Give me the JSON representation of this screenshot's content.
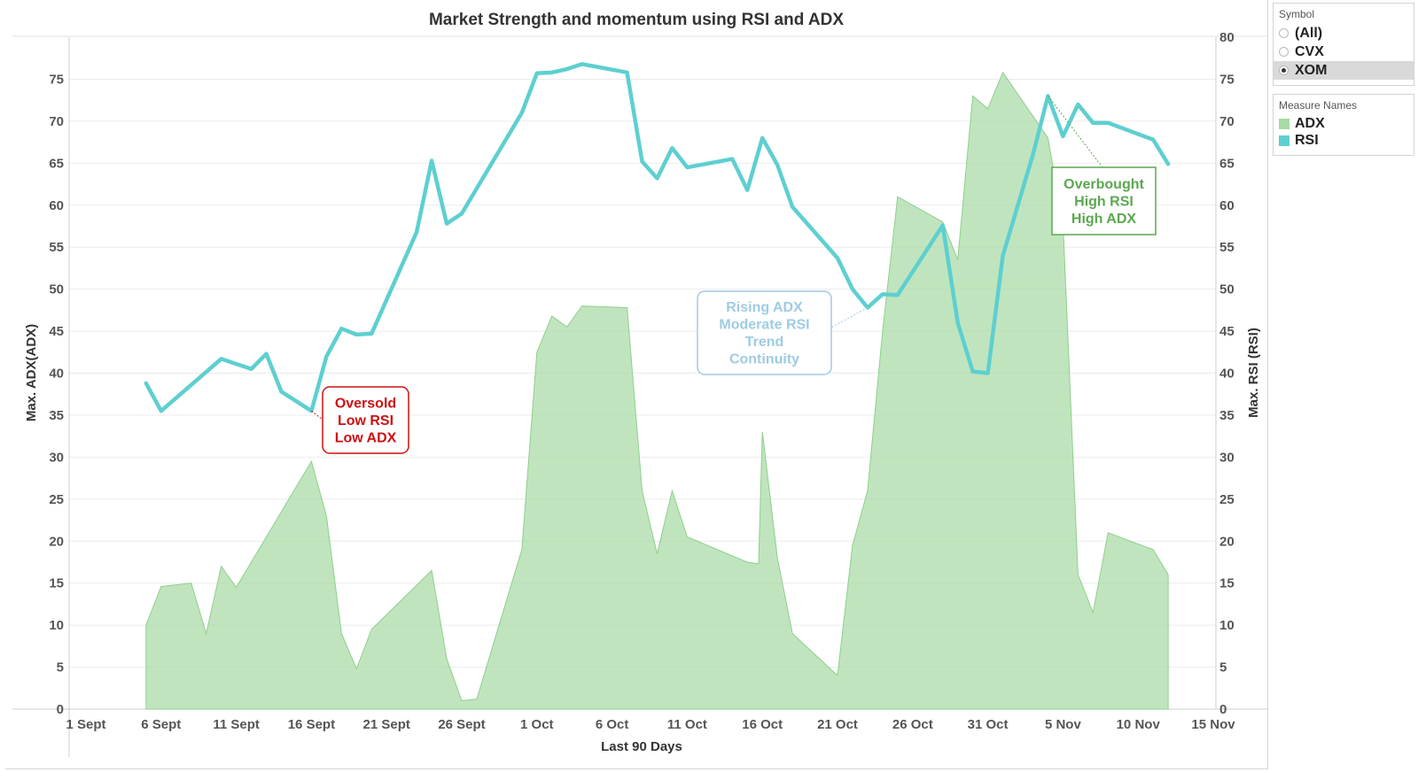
{
  "colors": {
    "adx_fill": "#a8dba5",
    "adx_line": "#8fce8c",
    "rsi_line": "#5ecfd0",
    "grid": "#ebebeb",
    "axis": "#cfcfcf",
    "oversold": "#cc1111",
    "rising": "#9ecbe4",
    "overbought": "#5aa84f"
  },
  "filters": {
    "title": "Symbol",
    "options": [
      {
        "label": "(All)",
        "selected": false
      },
      {
        "label": "CVX",
        "selected": false
      },
      {
        "label": "XOM",
        "selected": true
      }
    ]
  },
  "legend": {
    "title": "Measure Names",
    "items": [
      {
        "label": "ADX",
        "color": "#a8dba5"
      },
      {
        "label": "RSI",
        "color": "#5ecfd0"
      }
    ]
  },
  "chart_data": {
    "type": "area+line",
    "title": "Market Strength and momentum using RSI and ADX",
    "xlabel": "Last 90 Days",
    "ylabel_left": "Max. ADX(ADX)",
    "ylabel_right": "Max. RSI (RSI)",
    "x_domain": [
      "2023-09-01",
      "2023-11-15"
    ],
    "x_ticks": [
      {
        "date": "2023-09-01",
        "label": "1 Sept"
      },
      {
        "date": "2023-09-06",
        "label": "6 Sept"
      },
      {
        "date": "2023-09-11",
        "label": "11 Sept"
      },
      {
        "date": "2023-09-16",
        "label": "16 Sept"
      },
      {
        "date": "2023-09-21",
        "label": "21 Sept"
      },
      {
        "date": "2023-09-26",
        "label": "26 Sept"
      },
      {
        "date": "2023-10-01",
        "label": "1 Oct"
      },
      {
        "date": "2023-10-06",
        "label": "6 Oct"
      },
      {
        "date": "2023-10-11",
        "label": "11 Oct"
      },
      {
        "date": "2023-10-16",
        "label": "16 Oct"
      },
      {
        "date": "2023-10-21",
        "label": "21 Oct"
      },
      {
        "date": "2023-10-26",
        "label": "26 Oct"
      },
      {
        "date": "2023-10-31",
        "label": "31 Oct"
      },
      {
        "date": "2023-11-05",
        "label": "5 Nov"
      },
      {
        "date": "2023-11-10",
        "label": "10 Nov"
      },
      {
        "date": "2023-11-15",
        "label": "15 Nov"
      }
    ],
    "ylim_left": [
      0,
      80
    ],
    "yticks_left": [
      0,
      5,
      10,
      15,
      20,
      25,
      30,
      35,
      40,
      45,
      50,
      55,
      60,
      65,
      70,
      75
    ],
    "ylim_right": [
      0,
      80
    ],
    "yticks_right": [
      0,
      5,
      10,
      15,
      20,
      25,
      30,
      35,
      40,
      45,
      50,
      55,
      60,
      65,
      70,
      75,
      80
    ],
    "grid": true,
    "series": [
      {
        "name": "ADX",
        "axis": "left",
        "style": "area",
        "points": [
          [
            "2023-09-05",
            10.0
          ],
          [
            "2023-09-06",
            14.6
          ],
          [
            "2023-09-08",
            15.0
          ],
          [
            "2023-09-09",
            9.0
          ],
          [
            "2023-09-10",
            17.0
          ],
          [
            "2023-09-11",
            14.5
          ],
          [
            "2023-09-16",
            29.5
          ],
          [
            "2023-09-17",
            23.0
          ],
          [
            "2023-09-18",
            9.0
          ],
          [
            "2023-09-19",
            4.8
          ],
          [
            "2023-09-20",
            9.5
          ],
          [
            "2023-09-24",
            16.5
          ],
          [
            "2023-09-25",
            6.0
          ],
          [
            "2023-09-26",
            1.0
          ],
          [
            "2023-09-27",
            1.2
          ],
          [
            "2023-09-30",
            19.0
          ],
          [
            "2023-10-01",
            42.5
          ],
          [
            "2023-10-02",
            46.8
          ],
          [
            "2023-10-03",
            45.5
          ],
          [
            "2023-10-04",
            48.0
          ],
          [
            "2023-10-07",
            47.8
          ],
          [
            "2023-10-08",
            26.0
          ],
          [
            "2023-10-09",
            18.5
          ],
          [
            "2023-10-10",
            26.0
          ],
          [
            "2023-10-11",
            20.5
          ],
          [
            "2023-10-15",
            17.5
          ],
          [
            "2023-10-15T18:00",
            17.3
          ],
          [
            "2023-10-16",
            33.0
          ],
          [
            "2023-10-17",
            18.0
          ],
          [
            "2023-10-18",
            9.0
          ],
          [
            "2023-10-21",
            4.0
          ],
          [
            "2023-10-22",
            19.5
          ],
          [
            "2023-10-23",
            26.0
          ],
          [
            "2023-10-24",
            45.0
          ],
          [
            "2023-10-25",
            61.0
          ],
          [
            "2023-10-28",
            58.0
          ],
          [
            "2023-10-29",
            53.5
          ],
          [
            "2023-10-30",
            73.0
          ],
          [
            "2023-10-31",
            71.5
          ],
          [
            "2023-11-01",
            75.8
          ],
          [
            "2023-11-04",
            68.0
          ],
          [
            "2023-11-05",
            58.0
          ],
          [
            "2023-11-06",
            16.0
          ],
          [
            "2023-11-07",
            11.5
          ],
          [
            "2023-11-08",
            21.0
          ],
          [
            "2023-11-11",
            19.0
          ],
          [
            "2023-11-12",
            16.0
          ]
        ]
      },
      {
        "name": "RSI",
        "axis": "right",
        "style": "line",
        "points": [
          [
            "2023-09-05",
            38.8
          ],
          [
            "2023-09-06",
            35.5
          ],
          [
            "2023-09-10",
            41.7
          ],
          [
            "2023-09-12",
            40.5
          ],
          [
            "2023-09-13",
            42.3
          ],
          [
            "2023-09-14",
            37.8
          ],
          [
            "2023-09-16",
            35.5
          ],
          [
            "2023-09-17",
            42.0
          ],
          [
            "2023-09-18",
            45.3
          ],
          [
            "2023-09-19",
            44.6
          ],
          [
            "2023-09-20",
            44.7
          ],
          [
            "2023-09-23",
            56.8
          ],
          [
            "2023-09-24",
            65.3
          ],
          [
            "2023-09-25",
            57.8
          ],
          [
            "2023-09-26",
            59.0
          ],
          [
            "2023-09-30",
            71.0
          ],
          [
            "2023-10-01",
            75.7
          ],
          [
            "2023-10-02",
            75.8
          ],
          [
            "2023-10-03",
            76.2
          ],
          [
            "2023-10-04",
            76.8
          ],
          [
            "2023-10-07",
            75.8
          ],
          [
            "2023-10-08",
            65.2
          ],
          [
            "2023-10-09",
            63.2
          ],
          [
            "2023-10-10",
            66.8
          ],
          [
            "2023-10-11",
            64.5
          ],
          [
            "2023-10-14",
            65.5
          ],
          [
            "2023-10-15",
            61.8
          ],
          [
            "2023-10-16",
            68.0
          ],
          [
            "2023-10-17",
            64.8
          ],
          [
            "2023-10-18",
            59.8
          ],
          [
            "2023-10-21",
            53.7
          ],
          [
            "2023-10-22",
            50.0
          ],
          [
            "2023-10-23",
            47.8
          ],
          [
            "2023-10-24",
            49.4
          ],
          [
            "2023-10-25",
            49.3
          ],
          [
            "2023-10-28",
            57.6
          ],
          [
            "2023-10-29",
            46.0
          ],
          [
            "2023-10-30",
            40.2
          ],
          [
            "2023-10-31",
            40.0
          ],
          [
            "2023-11-01",
            54.0
          ],
          [
            "2023-11-03",
            66.0
          ],
          [
            "2023-11-04",
            73.0
          ],
          [
            "2023-11-05",
            68.2
          ],
          [
            "2023-11-06",
            72.0
          ],
          [
            "2023-11-07",
            69.8
          ],
          [
            "2023-11-08",
            69.8
          ],
          [
            "2023-11-11",
            67.8
          ],
          [
            "2023-11-12",
            64.9
          ]
        ]
      }
    ],
    "annotations": [
      {
        "id": "oversold",
        "lines": [
          "Oversold",
          "Low RSI",
          "Low ADX"
        ],
        "color": "#cc1111",
        "target_series": "RSI",
        "target": [
          "2023-09-16",
          35.5
        ]
      },
      {
        "id": "rising",
        "lines": [
          "Rising ADX",
          "Moderate RSI",
          "Trend",
          "Continuity"
        ],
        "color": "#9ecbe4",
        "target_series": "RSI",
        "target": [
          "2023-10-23",
          47.8
        ]
      },
      {
        "id": "overbought",
        "lines": [
          "Overbought",
          "High RSI",
          "High ADX"
        ],
        "color": "#5aa84f",
        "target_series": "RSI",
        "target": [
          "2023-11-04",
          73.0
        ]
      }
    ]
  }
}
